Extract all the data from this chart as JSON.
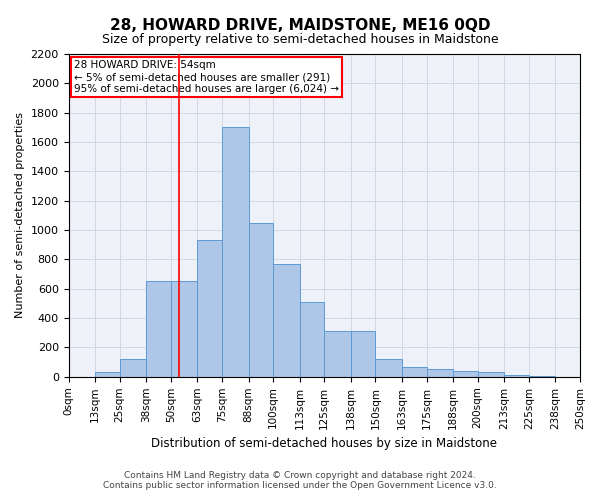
{
  "title": "28, HOWARD DRIVE, MAIDSTONE, ME16 0QD",
  "subtitle": "Size of property relative to semi-detached houses in Maidstone",
  "xlabel": "Distribution of semi-detached houses by size in Maidstone",
  "ylabel": "Number of semi-detached properties",
  "footer_line1": "Contains HM Land Registry data © Crown copyright and database right 2024.",
  "footer_line2": "Contains public sector information licensed under the Open Government Licence v3.0.",
  "annotation_line1": "28 HOWARD DRIVE: 54sqm",
  "annotation_line2": "← 5% of semi-detached houses are smaller (291)",
  "annotation_line3": "95% of semi-detached houses are larger (6,024) →",
  "bar_color": "#aec6e8",
  "bar_edge_color": "#5b9bd5",
  "red_line_x": 54,
  "categories": [
    "0sqm",
    "13sqm",
    "25sqm",
    "38sqm",
    "50sqm",
    "63sqm",
    "75sqm",
    "88sqm",
    "100sqm",
    "113sqm",
    "125sqm",
    "138sqm",
    "150sqm",
    "163sqm",
    "175sqm",
    "188sqm",
    "200sqm",
    "213sqm",
    "225sqm",
    "238sqm",
    "250sqm"
  ],
  "bin_edges": [
    0,
    13,
    25,
    38,
    50,
    63,
    75,
    88,
    100,
    113,
    125,
    138,
    150,
    163,
    175,
    188,
    200,
    213,
    225,
    238,
    250
  ],
  "values": [
    0,
    30,
    120,
    650,
    650,
    930,
    1700,
    1050,
    770,
    510,
    310,
    310,
    120,
    70,
    50,
    40,
    30,
    10,
    5,
    2
  ],
  "ylim": [
    0,
    2200
  ],
  "yticks": [
    0,
    200,
    400,
    600,
    800,
    1000,
    1200,
    1400,
    1600,
    1800,
    2000,
    2200
  ],
  "background_color": "#ffffff",
  "ax_facecolor": "#eef2f8",
  "grid_color": "#d0d8e8"
}
